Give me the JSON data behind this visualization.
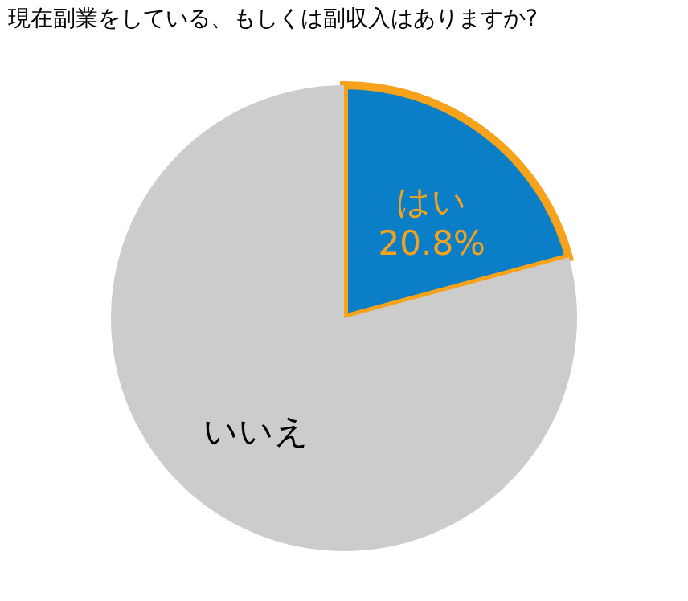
{
  "chart_data": {
    "type": "pie",
    "title": "現在副業をしている、もしくは副収入はありますか?",
    "categories": [
      "はい",
      "いいえ"
    ],
    "values": [
      20.8,
      79.2
    ],
    "colors": [
      "#0a7fc8",
      "#cccccc"
    ],
    "value_labels": [
      "20.8%",
      null
    ],
    "legend": false
  }
}
